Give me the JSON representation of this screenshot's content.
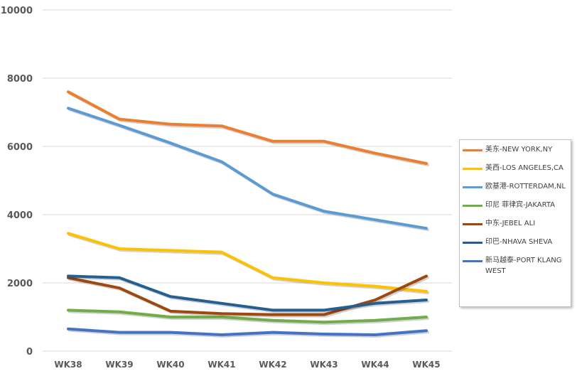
{
  "chart_data": {
    "type": "line",
    "categories": [
      "WK38",
      "WK39",
      "WK40",
      "WK41",
      "WK42",
      "WK43",
      "WK44",
      "WK45"
    ],
    "ylim": [
      0,
      10000
    ],
    "yticks": [
      0,
      2000,
      4000,
      6000,
      8000,
      10000
    ],
    "grid": true,
    "legend_position": "right",
    "series": [
      {
        "name": "美东-NEW YORK,NY",
        "color": "#ED7D31",
        "values": [
          7600,
          6800,
          6650,
          6600,
          6150,
          6150,
          5800,
          5500
        ]
      },
      {
        "name": "美西-LOS ANGELES,CA",
        "color": "#FFC000",
        "values": [
          3450,
          3000,
          2950,
          2900,
          2150,
          2000,
          1900,
          1750
        ]
      },
      {
        "name": "欧基港-ROTTERDAM,NL",
        "color": "#5B9BD5",
        "values": [
          7120,
          6620,
          6100,
          5550,
          4600,
          4100,
          3850,
          3600
        ]
      },
      {
        "name": "印尼 菲律宾-JAKARTA",
        "color": "#70AD47",
        "values": [
          1200,
          1150,
          1000,
          1000,
          900,
          850,
          900,
          1000
        ]
      },
      {
        "name": "中东-JEBEL ALI",
        "color": "#9E480E",
        "values": [
          2150,
          1850,
          1170,
          1100,
          1070,
          1070,
          1500,
          2200
        ]
      },
      {
        "name": "印巴-NHAVA SHEVA",
        "color": "#255E91",
        "values": [
          2200,
          2150,
          1600,
          1400,
          1200,
          1200,
          1400,
          1500
        ]
      },
      {
        "name": "新马越泰-PORT KLANG WEST",
        "color": "#4472C4",
        "values": [
          650,
          550,
          550,
          480,
          550,
          500,
          480,
          600
        ]
      }
    ]
  }
}
